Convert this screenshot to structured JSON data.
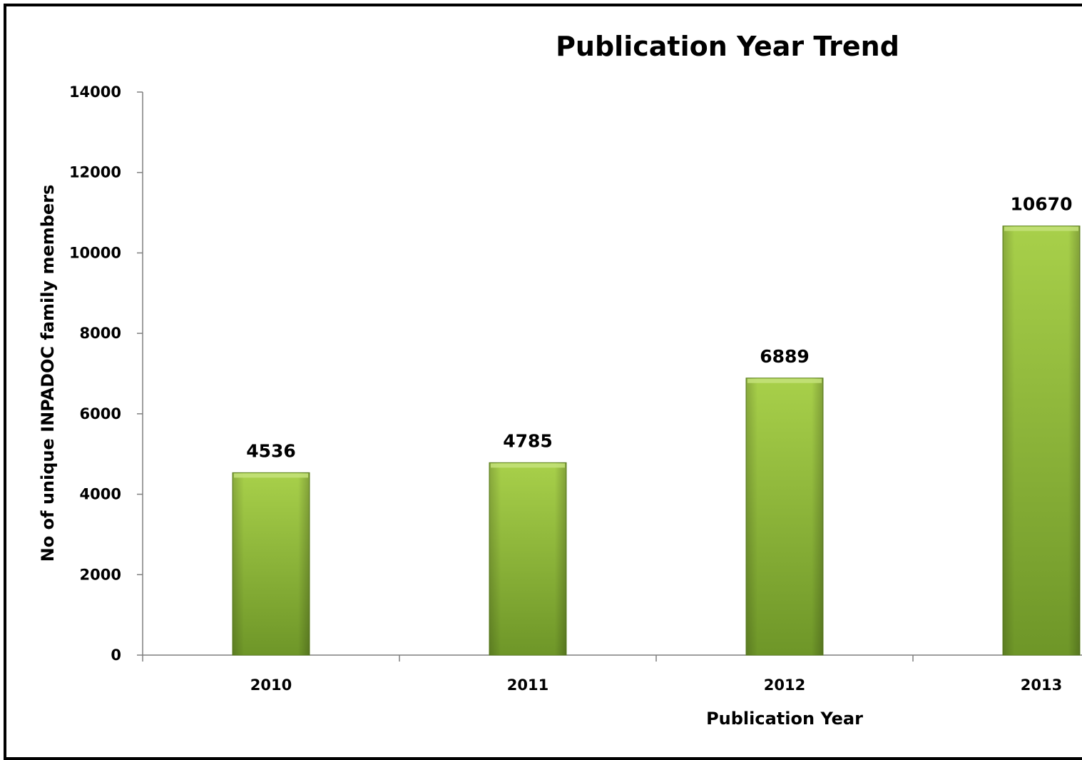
{
  "chart_data": {
    "type": "bar",
    "title": "Publication Year Trend",
    "xlabel": "Publication Year",
    "ylabel": "No of unique INPADOC family members",
    "categories": [
      "2010",
      "2011",
      "2012",
      "2013"
    ],
    "values": [
      4536,
      4785,
      6889,
      10670
    ],
    "data_labels": [
      "4536",
      "4785",
      "6889",
      "10670"
    ],
    "ylim": [
      0,
      14000
    ],
    "yticks": [
      0,
      2000,
      4000,
      6000,
      8000,
      10000,
      12000,
      14000
    ],
    "ytick_labels": [
      "0",
      "2000",
      "4000",
      "6000",
      "8000",
      "10000",
      "12000",
      "14000"
    ],
    "grid": false,
    "legend": "none",
    "colors": {
      "bar_light": "#a8d04a",
      "bar_dark": "#6e9628",
      "axis": "#7f7f7f",
      "frame": "#000000"
    }
  }
}
